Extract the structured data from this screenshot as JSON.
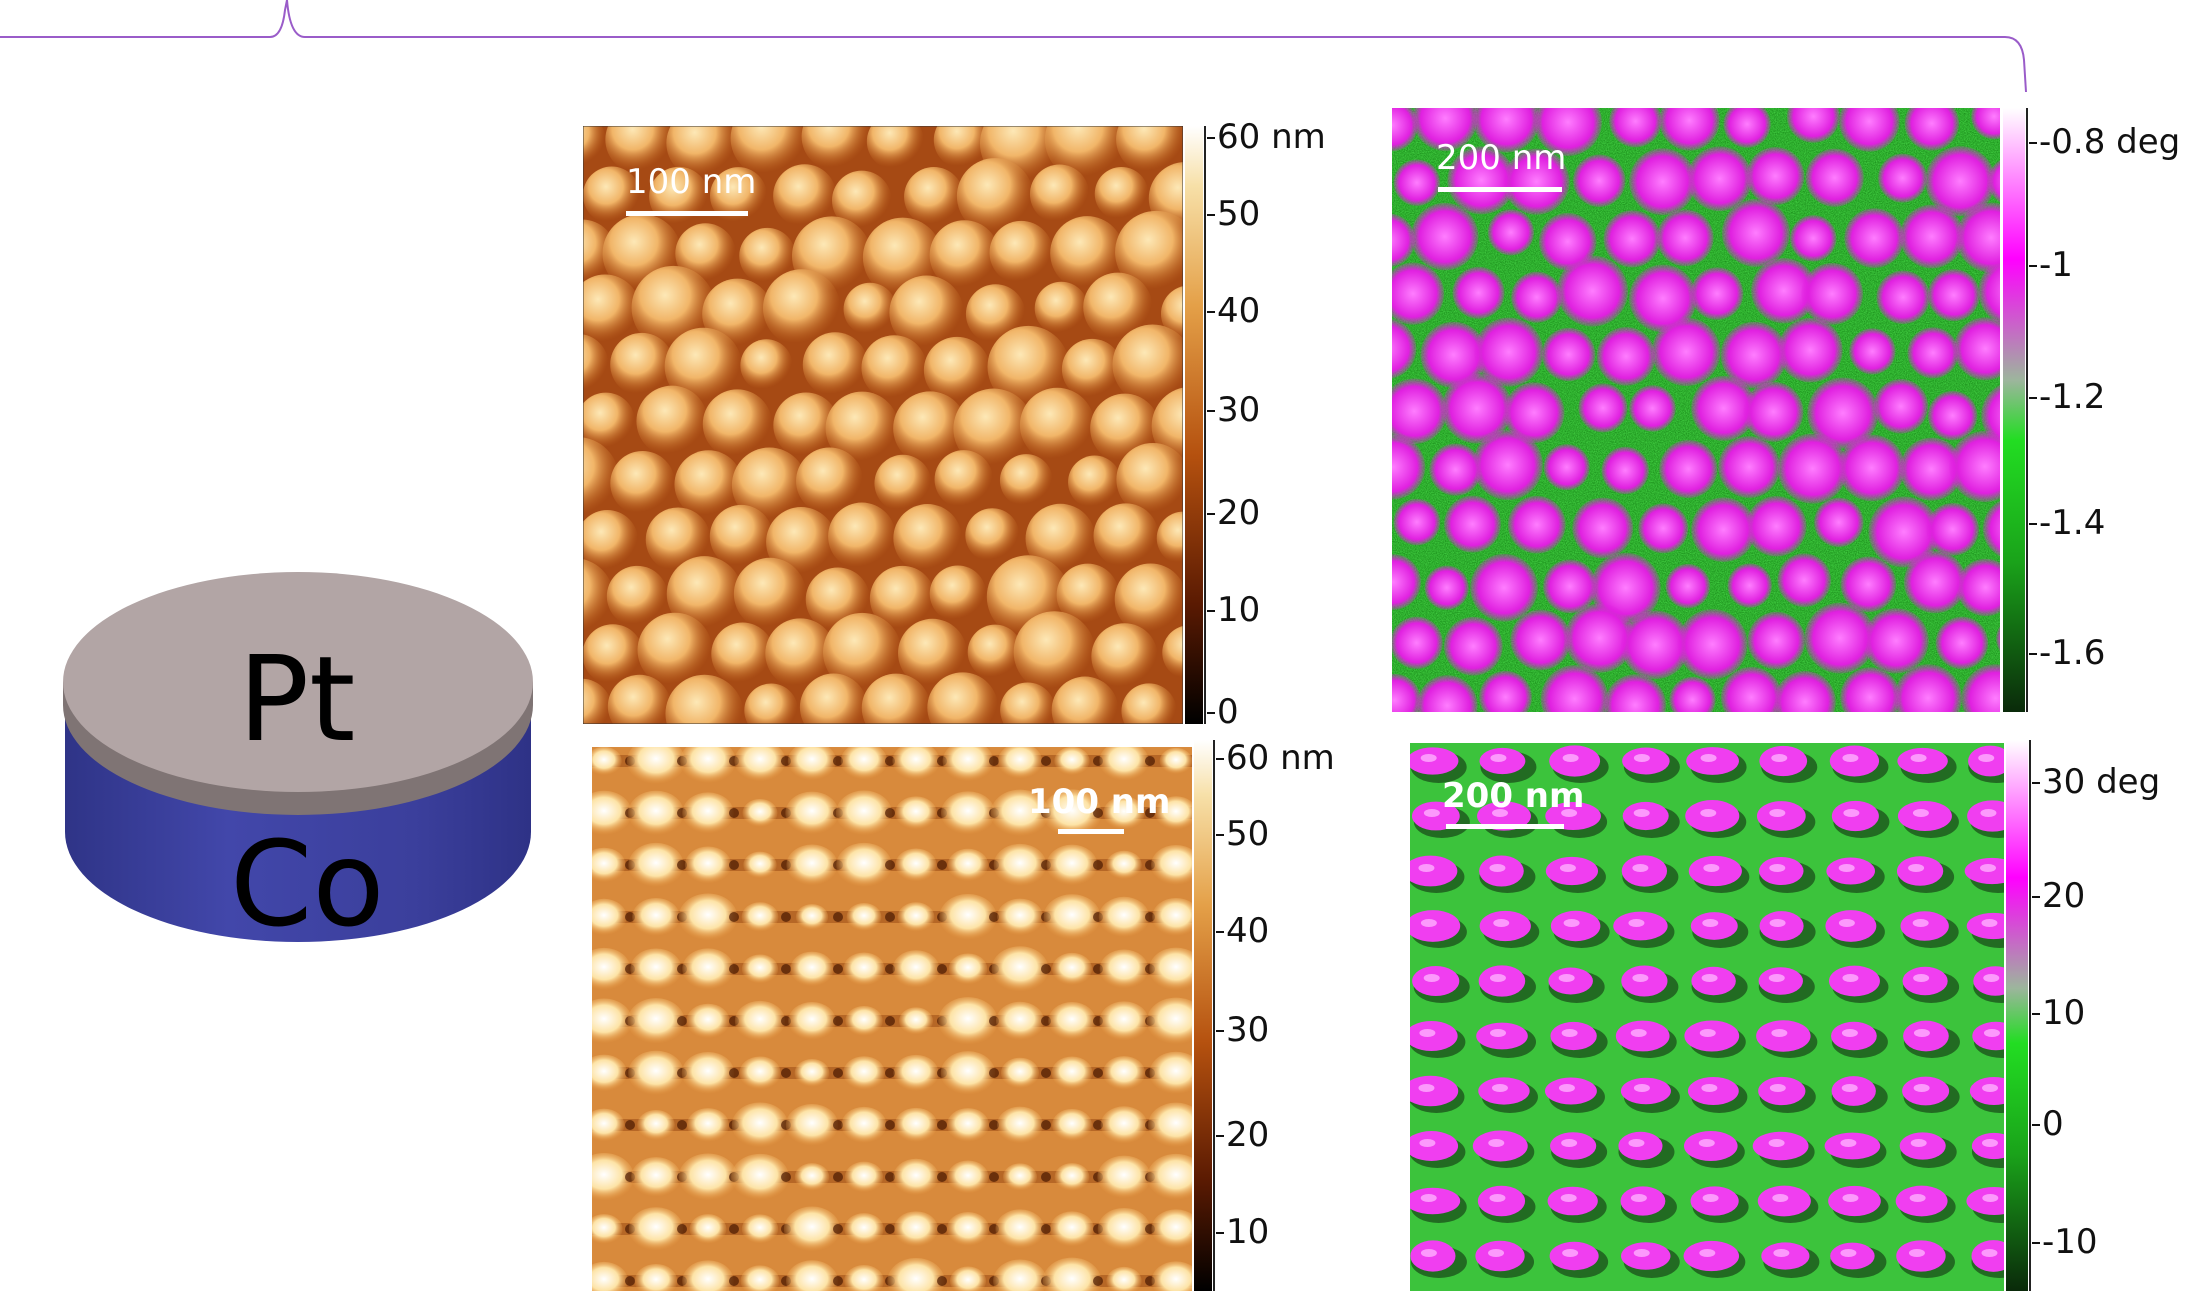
{
  "schematic": {
    "top_label": "Pt",
    "bottom_label": "Co",
    "colors": {
      "top": "#b2a5a5",
      "rim": "#7f7474",
      "side": "#3b3f9c",
      "bracket": "#9a5cc9"
    }
  },
  "panels": {
    "topography_a": {
      "scalebar": "100 nm",
      "colorbar_ticks": [
        "60 nm",
        "50",
        "40",
        "30",
        "20",
        "10",
        "0"
      ]
    },
    "phase_a": {
      "scalebar": "200 nm",
      "colorbar_ticks": [
        "-0.8 deg",
        "-1",
        "-1.2",
        "-1.4",
        "-1.6"
      ]
    },
    "topography_b": {
      "scalebar": "100 nm",
      "colorbar_ticks": [
        "60 nm",
        "50",
        "40",
        "30",
        "20",
        "10"
      ]
    },
    "phase_b": {
      "scalebar": "200 nm",
      "colorbar_ticks": [
        "30 deg",
        "20",
        "10",
        "0",
        "-10"
      ]
    }
  }
}
